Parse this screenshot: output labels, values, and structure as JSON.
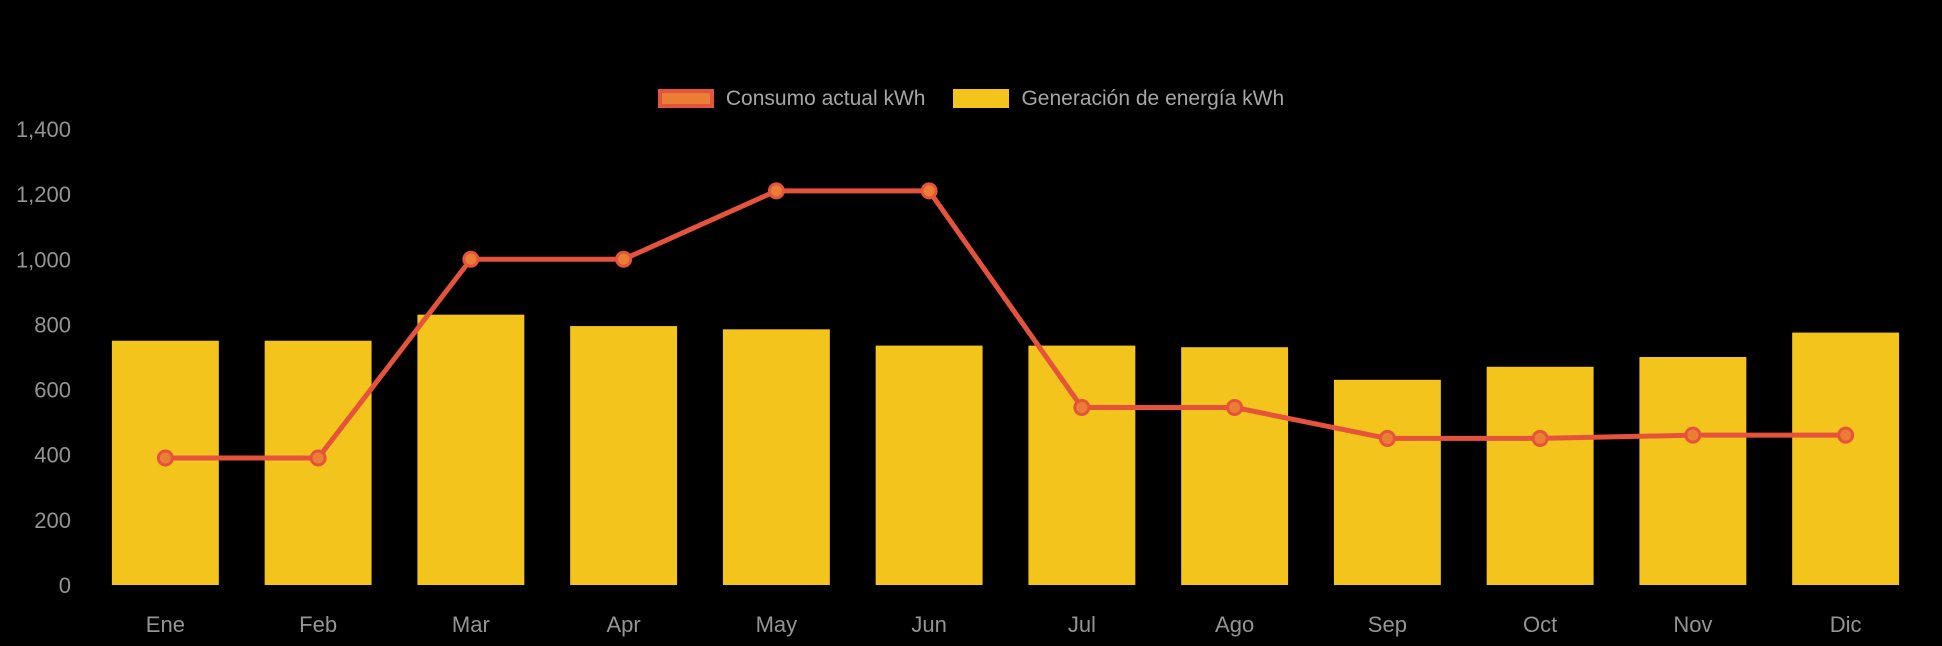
{
  "chart_data": {
    "type": "combo",
    "title": "",
    "categories": [
      "Ene",
      "Feb",
      "Mar",
      "Apr",
      "May",
      "Jun",
      "Jul",
      "Ago",
      "Sep",
      "Oct",
      "Nov",
      "Dic"
    ],
    "series": [
      {
        "name": "Consumo actual kWh",
        "type": "line",
        "values": [
          390,
          390,
          1000,
          1000,
          1210,
          1210,
          545,
          545,
          450,
          450,
          460,
          460
        ],
        "color": "#e6533c",
        "point_fill": "#ea7e35"
      },
      {
        "name": "Generación de energía kWh",
        "type": "bar",
        "values": [
          750,
          750,
          830,
          795,
          785,
          735,
          735,
          730,
          630,
          670,
          700,
          775
        ],
        "color": "#f2c41c"
      }
    ],
    "xlabel": "",
    "ylabel": "",
    "ylim": [
      0,
      1400
    ],
    "yticks": [
      0,
      200,
      400,
      600,
      800,
      1000,
      1200,
      1400
    ],
    "ytick_labels": [
      "0",
      "200",
      "400",
      "600",
      "800",
      "1,000",
      "1,200",
      "1,400"
    ],
    "grid": false,
    "legend_position": "top-center",
    "background_color": "#000000",
    "tick_color": "#949494",
    "legend_text_color": "#a6a6a6"
  }
}
